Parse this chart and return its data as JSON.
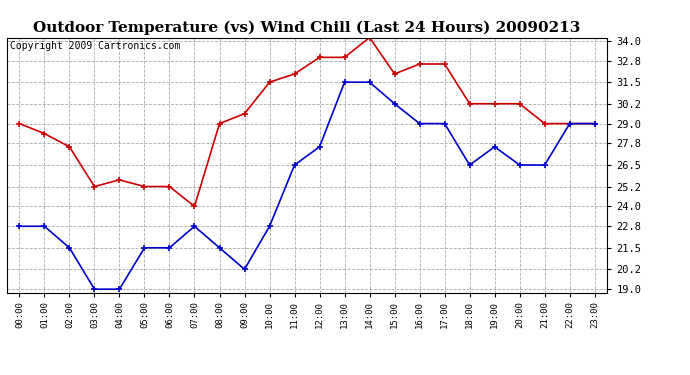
{
  "title": "Outdoor Temperature (vs) Wind Chill (Last 24 Hours) 20090213",
  "copyright_text": "Copyright 2009 Cartronics.com",
  "hours": [
    "00:00",
    "01:00",
    "02:00",
    "03:00",
    "04:00",
    "05:00",
    "06:00",
    "07:00",
    "08:00",
    "09:00",
    "10:00",
    "11:00",
    "12:00",
    "13:00",
    "14:00",
    "15:00",
    "16:00",
    "17:00",
    "18:00",
    "19:00",
    "20:00",
    "21:00",
    "22:00",
    "23:00"
  ],
  "temp": [
    29.0,
    28.4,
    27.6,
    25.2,
    25.6,
    25.2,
    25.2,
    24.0,
    29.0,
    29.6,
    31.5,
    32.0,
    33.0,
    33.0,
    34.2,
    32.0,
    32.6,
    32.6,
    30.2,
    30.2,
    30.2,
    29.0,
    29.0,
    29.0
  ],
  "windchill": [
    22.8,
    22.8,
    21.5,
    19.0,
    19.0,
    21.5,
    21.5,
    22.8,
    21.5,
    20.2,
    22.8,
    26.5,
    27.6,
    31.5,
    31.5,
    30.2,
    29.0,
    29.0,
    26.5,
    27.6,
    26.5,
    26.5,
    29.0,
    29.0
  ],
  "temp_color": "#cc0000",
  "windchill_color": "#0000cc",
  "bg_color": "#ffffff",
  "grid_color": "#aaaaaa",
  "ylim_min": 19.0,
  "ylim_max": 34.0,
  "yticks": [
    19.0,
    20.2,
    21.5,
    22.8,
    24.0,
    25.2,
    26.5,
    27.8,
    29.0,
    30.2,
    31.5,
    32.8,
    34.0
  ],
  "title_fontsize": 11,
  "copyright_fontsize": 7
}
